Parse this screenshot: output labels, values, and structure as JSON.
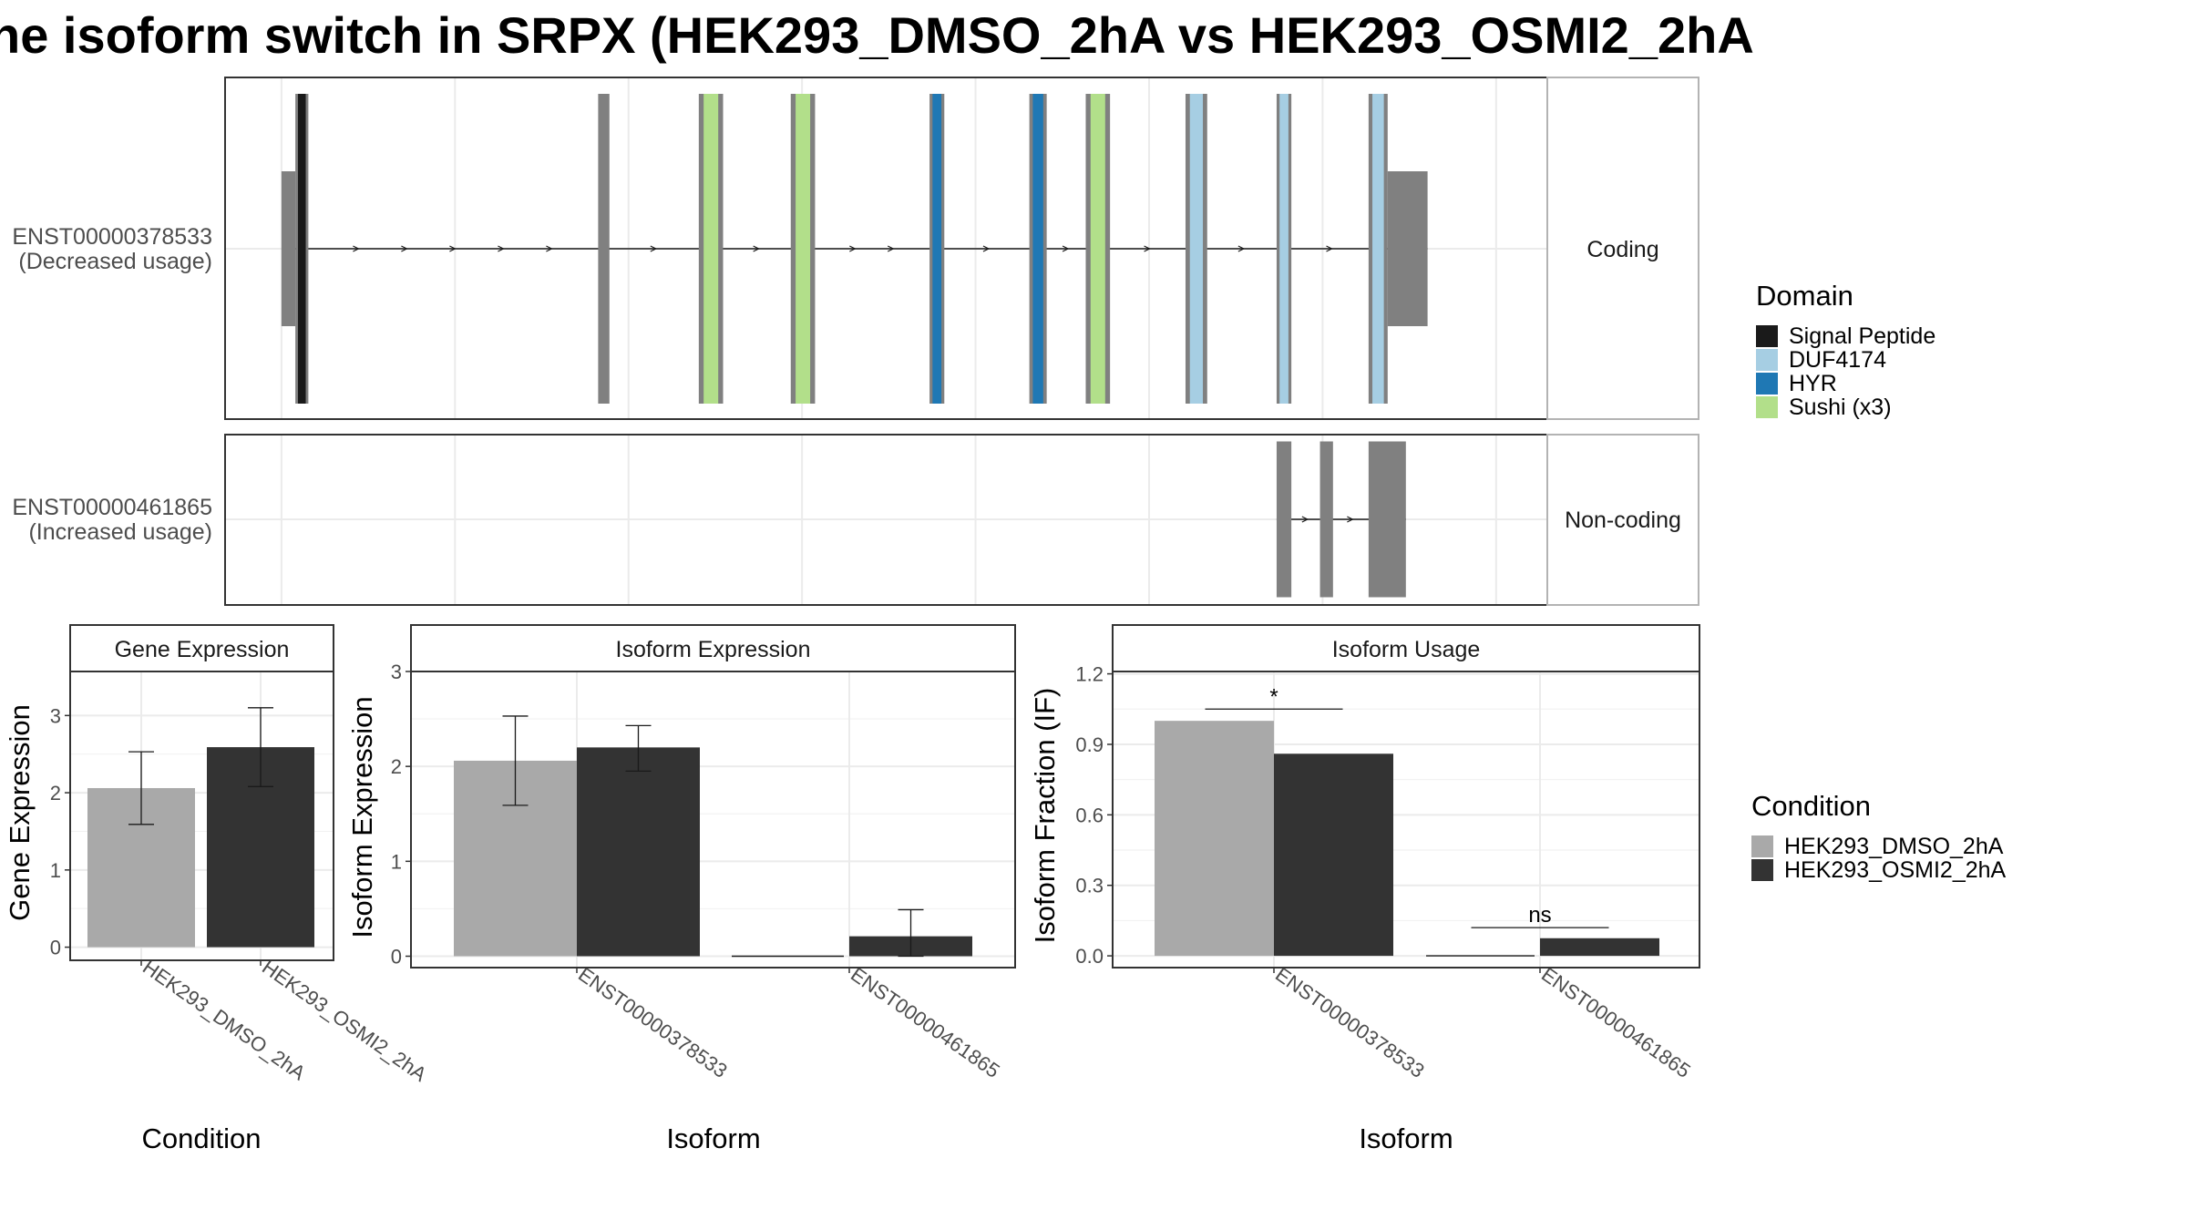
{
  "title": "he isoform switch in SRPX (HEK293_DMSO_2hA vs HEK293_OSMI2_2hA",
  "colors": {
    "exon": "#808080",
    "Signal Peptide": "#1a1a1a",
    "DUF4174": "#a6cee3",
    "HYR": "#1f78b4",
    "Sushi (x3)": "#b2df8a",
    "HEK293_DMSO_2hA": "#a9a9a9",
    "HEK293_OSMI2_2hA": "#333333"
  },
  "chart_data": [
    {
      "type": "gene-structure",
      "transcripts": [
        {
          "id": "ENST00000378533",
          "usage": "(Decreased usage)",
          "category": "Coding",
          "utr_segments": [
            [
              63,
              79
            ],
            [
              1338,
              1384
            ]
          ],
          "exons": [
            {
              "x": [
                79,
                94
              ],
              "domain": "Signal Peptide"
            },
            {
              "x": [
                428,
                441
              ]
            },
            {
              "x": [
                544,
                572
              ],
              "domain": "Sushi (x3)"
            },
            {
              "x": [
                650,
                678
              ],
              "domain": "Sushi (x3)"
            },
            {
              "x": [
                810,
                827
              ],
              "domain": "HYR"
            },
            {
              "x": [
                925,
                945
              ],
              "domain": "HYR"
            },
            {
              "x": [
                990,
                1018
              ],
              "domain": "Sushi (x3)"
            },
            {
              "x": [
                1105,
                1130
              ],
              "domain": "DUF4174"
            },
            {
              "x": [
                1210,
                1227
              ],
              "domain": "DUF4174"
            },
            {
              "x": [
                1316,
                1338
              ],
              "domain": "DUF4174"
            }
          ]
        },
        {
          "id": "ENST00000461865",
          "usage": "(Increased usage)",
          "category": "Non-coding",
          "utr_segments": [],
          "exons": [
            {
              "x": [
                1210,
                1227
              ]
            },
            {
              "x": [
                1260,
                1275
              ]
            },
            {
              "x": [
                1316,
                1359
              ]
            }
          ]
        }
      ],
      "x_breaks": [
        63,
        263,
        463,
        663,
        863,
        1063,
        1263,
        1463
      ],
      "xlim": [
        -2,
        1522
      ]
    },
    {
      "type": "bar",
      "strip": "Gene Expression",
      "xlabel": "Condition",
      "ylabel": "Gene Expression",
      "categories": [
        "HEK293_DMSO_2hA",
        "HEK293_OSMI2_2hA"
      ],
      "values": [
        2.06,
        2.59
      ],
      "error": [
        [
          1.59,
          2.53
        ],
        [
          2.08,
          3.1
        ]
      ],
      "ylim": [
        -0.17,
        3.57
      ],
      "yticks": [
        0,
        1,
        2,
        3
      ]
    },
    {
      "type": "bar",
      "strip": "Isoform Expression",
      "xlabel": "Isoform",
      "ylabel": "Isoform Expression",
      "categories": [
        "ENST00000378533",
        "ENST00000461865"
      ],
      "series": [
        {
          "name": "HEK293_DMSO_2hA",
          "values": [
            2.06,
            0.0
          ],
          "error": [
            [
              1.59,
              2.53
            ],
            [
              0,
              0
            ]
          ]
        },
        {
          "name": "HEK293_OSMI2_2hA",
          "values": [
            2.2,
            0.21
          ],
          "error": [
            [
              1.95,
              2.43
            ],
            [
              0,
              0.49
            ]
          ]
        }
      ],
      "ylim": [
        -0.12,
        3.0
      ],
      "yticks": [
        0,
        1,
        2,
        3
      ]
    },
    {
      "type": "bar",
      "strip": "Isoform Usage",
      "xlabel": "Isoform",
      "ylabel": "Isoform Fraction (IF)",
      "categories": [
        "ENST00000378533",
        "ENST00000461865"
      ],
      "series": [
        {
          "name": "HEK293_DMSO_2hA",
          "values": [
            1.0,
            0.0
          ]
        },
        {
          "name": "HEK293_OSMI2_2hA",
          "values": [
            0.86,
            0.075
          ]
        }
      ],
      "ylim": [
        -0.05,
        1.21
      ],
      "yticks": [
        "0.0",
        "0.3",
        "0.6",
        "0.9",
        "1.2"
      ],
      "significance": [
        {
          "label": "*",
          "category": 0,
          "y": 1.05
        },
        {
          "label": "ns",
          "category": 1,
          "y": 0.12
        }
      ]
    }
  ],
  "legend_domain": {
    "title": "Domain",
    "items": [
      "Signal Peptide",
      "DUF4174",
      "HYR",
      "Sushi (x3)"
    ]
  },
  "legend_condition": {
    "title": "Condition",
    "items": [
      "HEK293_DMSO_2hA",
      "HEK293_OSMI2_2hA"
    ]
  }
}
